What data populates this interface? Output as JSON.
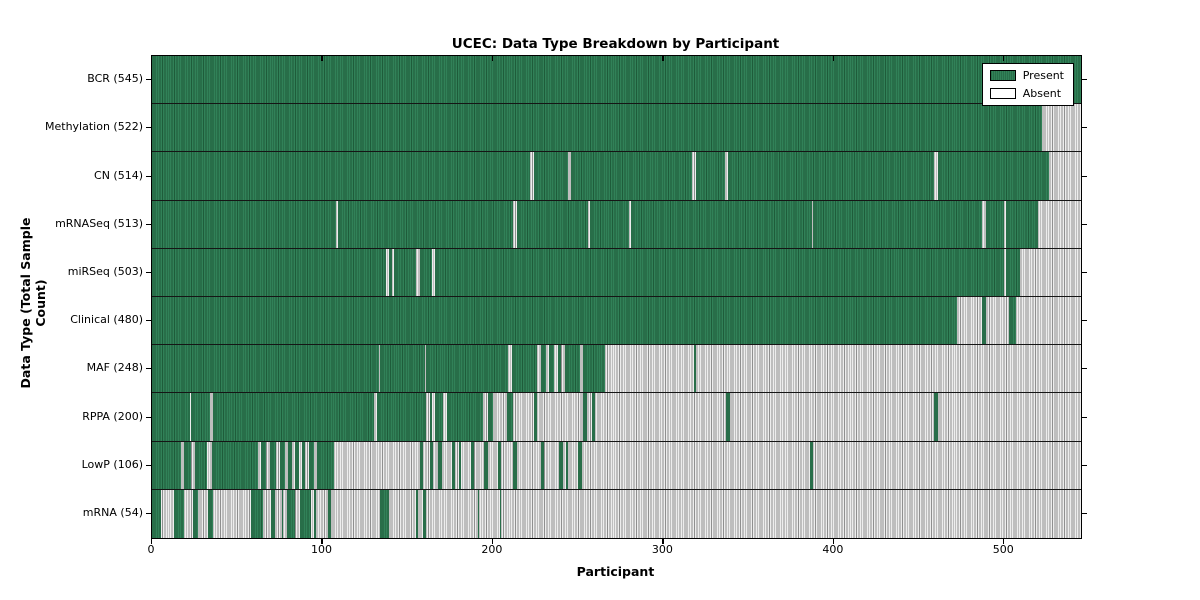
{
  "title": "UCEC: Data Type Breakdown by Participant",
  "x_axis": {
    "label": "Participant",
    "ticks": [
      0,
      100,
      200,
      300,
      400,
      500
    ],
    "min": 0,
    "max": 545
  },
  "y_axis": {
    "label": "Data Type (Total Sample Count)"
  },
  "legend": [
    {
      "label": "Present",
      "color": "#2e7d51"
    },
    {
      "label": "Absent",
      "color": "#ffffff"
    }
  ],
  "colors": {
    "present_fill": "#318158",
    "present_edge": "#1e5c3a",
    "absent_fill": "#ededed",
    "absent_edge": "#8f8f8f",
    "axis_border": "#000000"
  },
  "chart_data": {
    "type": "heatmap",
    "title": "UCEC: Data Type Breakdown by Participant",
    "xlabel": "Participant",
    "ylabel": "Data Type (Total Sample Count)",
    "x_range": [
      0,
      545
    ],
    "legend_position": "upper right",
    "legend_entries": [
      "Present",
      "Absent"
    ],
    "rows": [
      {
        "name": "BCR",
        "total": 545,
        "label": "BCR (545)",
        "present_ranges": [
          [
            0,
            545
          ]
        ]
      },
      {
        "name": "Methylation",
        "total": 522,
        "label": "Methylation (522)",
        "present_ranges": [
          [
            0,
            522
          ]
        ]
      },
      {
        "name": "CN",
        "total": 514,
        "label": "CN (514)",
        "present_ranges": [
          [
            0,
            222
          ],
          [
            224,
            244
          ],
          [
            246,
            317
          ],
          [
            319,
            336
          ],
          [
            338,
            459
          ],
          [
            461,
            526
          ]
        ]
      },
      {
        "name": "mRNASeq",
        "total": 513,
        "label": "mRNASeq (513)",
        "present_ranges": [
          [
            0,
            108
          ],
          [
            109,
            212
          ],
          [
            214,
            256
          ],
          [
            257,
            280
          ],
          [
            281,
            387
          ],
          [
            388,
            487
          ],
          [
            489,
            500
          ],
          [
            501,
            520
          ]
        ]
      },
      {
        "name": "miRSeq",
        "total": 503,
        "label": "miRSeq (503)",
        "present_ranges": [
          [
            0,
            137
          ],
          [
            139,
            141
          ],
          [
            142,
            155
          ],
          [
            157,
            164
          ],
          [
            166,
            500
          ],
          [
            501,
            509
          ]
        ]
      },
      {
        "name": "Clinical",
        "total": 480,
        "label": "Clinical (480)",
        "present_ranges": [
          [
            0,
            472
          ],
          [
            487,
            489
          ],
          [
            503,
            507
          ]
        ]
      },
      {
        "name": "MAF",
        "total": 248,
        "label": "MAF (248)",
        "present_ranges": [
          [
            0,
            133
          ],
          [
            134,
            160
          ],
          [
            161,
            209
          ],
          [
            211,
            226
          ],
          [
            228,
            231
          ],
          [
            233,
            236
          ],
          [
            238,
            240
          ],
          [
            242,
            251
          ],
          [
            253,
            266
          ],
          [
            318,
            319
          ]
        ]
      },
      {
        "name": "RPPA",
        "total": 200,
        "label": "RPPA (200)",
        "present_ranges": [
          [
            0,
            22
          ],
          [
            23,
            34
          ],
          [
            36,
            130
          ],
          [
            132,
            161
          ],
          [
            163,
            164
          ],
          [
            166,
            171
          ],
          [
            173,
            194
          ],
          [
            197,
            200
          ],
          [
            208,
            212
          ],
          [
            224,
            226
          ],
          [
            253,
            255
          ],
          [
            258,
            260
          ],
          [
            337,
            339
          ],
          [
            459,
            461
          ]
        ]
      },
      {
        "name": "LowP",
        "total": 106,
        "label": "LowP (106)",
        "present_ranges": [
          [
            0,
            17
          ],
          [
            19,
            23
          ],
          [
            25,
            32
          ],
          [
            35,
            62
          ],
          [
            64,
            67
          ],
          [
            69,
            73
          ],
          [
            75,
            78
          ],
          [
            80,
            82
          ],
          [
            84,
            86
          ],
          [
            88,
            90
          ],
          [
            92,
            95
          ],
          [
            97,
            107
          ],
          [
            157,
            159
          ],
          [
            163,
            165
          ],
          [
            168,
            170
          ],
          [
            176,
            178
          ],
          [
            180,
            181
          ],
          [
            187,
            189
          ],
          [
            195,
            197
          ],
          [
            203,
            205
          ],
          [
            212,
            214
          ],
          [
            228,
            230
          ],
          [
            239,
            241
          ],
          [
            243,
            244
          ],
          [
            250,
            252
          ],
          [
            386,
            388
          ]
        ]
      },
      {
        "name": "mRNA",
        "total": 54,
        "label": "mRNA (54)",
        "present_ranges": [
          [
            0,
            5
          ],
          [
            13,
            19
          ],
          [
            24,
            27
          ],
          [
            33,
            36
          ],
          [
            58,
            65
          ],
          [
            70,
            72
          ],
          [
            76,
            77
          ],
          [
            79,
            84
          ],
          [
            87,
            93
          ],
          [
            95,
            96
          ],
          [
            103,
            105
          ],
          [
            134,
            139
          ],
          [
            155,
            156
          ],
          [
            159,
            161
          ],
          [
            191,
            192
          ],
          [
            204,
            205
          ]
        ]
      }
    ]
  }
}
